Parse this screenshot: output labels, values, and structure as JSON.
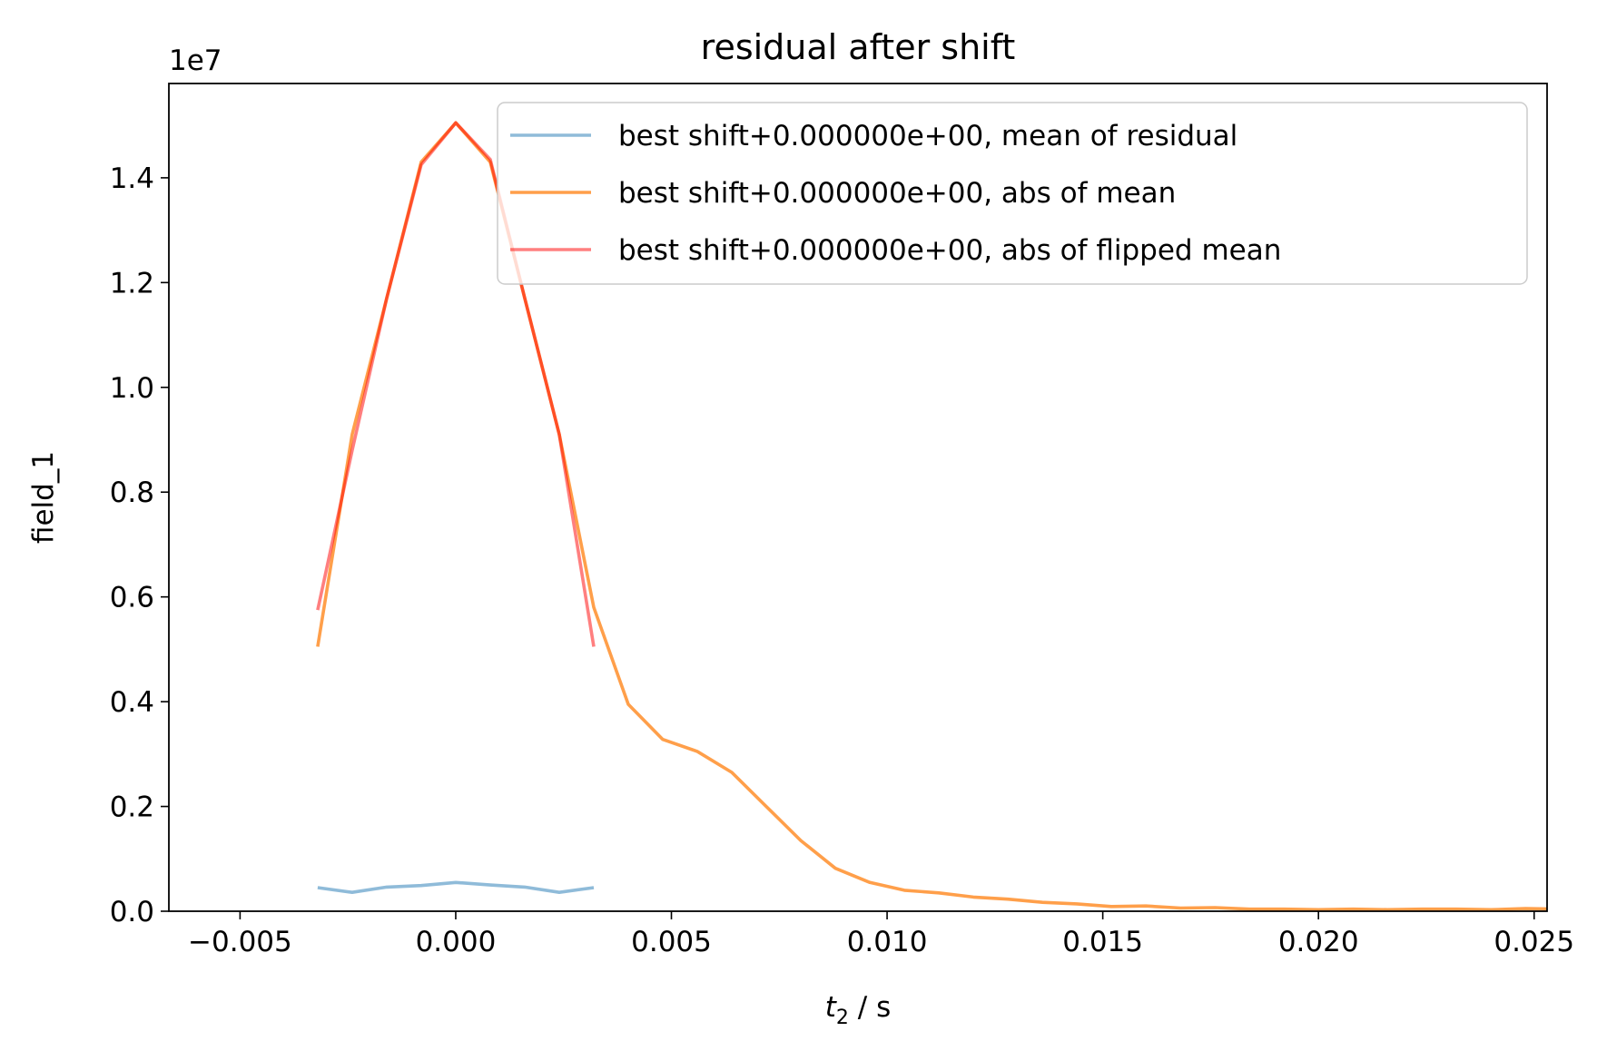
{
  "chart_data": {
    "type": "line",
    "title": "residual after shift",
    "xlabel_var": "t",
    "xlabel_sub": "2",
    "xlabel_unit": " / s",
    "ylabel": "field_1",
    "y_offset_label": "1e7",
    "xlim": [
      -0.00665,
      0.0253
    ],
    "ylim": [
      0,
      1.58
    ],
    "x_ticks": [
      -0.005,
      0.0,
      0.005,
      0.01,
      0.015,
      0.02,
      0.025
    ],
    "x_tick_labels": [
      "−0.005",
      "0.000",
      "0.005",
      "0.010",
      "0.015",
      "0.020",
      "0.025"
    ],
    "y_ticks": [
      0.0,
      0.2,
      0.4,
      0.6,
      0.8,
      1.0,
      1.2,
      1.4
    ],
    "y_tick_labels": [
      "0.0",
      "0.2",
      "0.4",
      "0.6",
      "0.8",
      "1.0",
      "1.2",
      "1.4"
    ],
    "grid": false,
    "legend_position": "top-right",
    "series": [
      {
        "name": "best shift+0.000000e+00, mean of residual",
        "color": "#1f77b4",
        "opacity": 0.5,
        "x": [
          -0.0032,
          -0.0024,
          -0.0016,
          -0.0008,
          0.0,
          0.0008,
          0.0016,
          0.0024,
          0.0032
        ],
        "y": [
          0.045,
          0.036,
          0.046,
          0.049,
          0.055,
          0.05,
          0.046,
          0.036,
          0.045
        ]
      },
      {
        "name": "best shift+0.000000e+00, abs of mean",
        "color": "#ff7f0e",
        "opacity": 0.75,
        "x": [
          -0.0032,
          -0.0024,
          -0.0016,
          -0.0008,
          0.0,
          0.0008,
          0.0016,
          0.0024,
          0.0032,
          0.004,
          0.0048,
          0.0056,
          0.0064,
          0.0072,
          0.008,
          0.0088,
          0.0096,
          0.0104,
          0.0112,
          0.012,
          0.0128,
          0.0136,
          0.0144,
          0.0152,
          0.016,
          0.0168,
          0.0176,
          0.0184,
          0.0192,
          0.02,
          0.0208,
          0.0216,
          0.0224,
          0.0232,
          0.024,
          0.0248,
          0.0256
        ],
        "y": [
          0.505,
          0.91,
          1.17,
          1.43,
          1.505,
          1.43,
          1.17,
          0.91,
          0.58,
          0.395,
          0.328,
          0.305,
          0.265,
          0.2,
          0.135,
          0.082,
          0.055,
          0.04,
          0.035,
          0.027,
          0.023,
          0.017,
          0.014,
          0.009,
          0.01,
          0.006,
          0.007,
          0.004,
          0.004,
          0.003,
          0.004,
          0.003,
          0.004,
          0.004,
          0.003,
          0.005,
          0.004
        ]
      },
      {
        "name": "best shift+0.000000e+00, abs of flipped mean",
        "color": "#ff0000",
        "opacity": 0.5,
        "x": [
          -0.0032,
          -0.0024,
          -0.0016,
          -0.0008,
          0.0,
          0.0008,
          0.0016,
          0.0024,
          0.0032
        ],
        "y": [
          0.575,
          0.88,
          1.17,
          1.425,
          1.505,
          1.435,
          1.17,
          0.91,
          0.505
        ]
      }
    ]
  }
}
